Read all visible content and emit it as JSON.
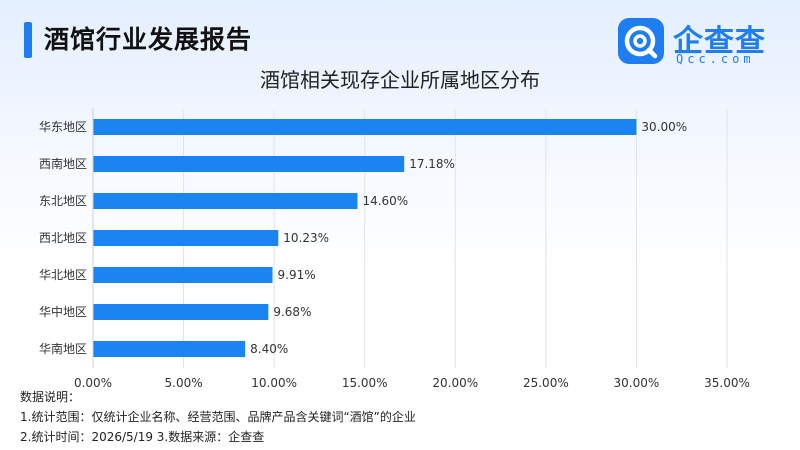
{
  "header": {
    "title": "酒馆行业发展报告"
  },
  "logo": {
    "name": "企查查",
    "domain": "Qcc.com",
    "icon": "qcc-logo-icon"
  },
  "colors": {
    "accent": "#1e7ef0",
    "bar": "#1a85f0"
  },
  "notes": {
    "heading": "数据说明：",
    "line1": "1.统计范围：仅统计企业名称、经营范围、品牌产品含关键词“酒馆”的企业",
    "line2": "2.统计时间：2026/5/19  3.数据来源：企查查"
  },
  "chart_data": {
    "type": "bar",
    "orientation": "horizontal",
    "title": "酒馆相关现存企业所属地区分布",
    "categories": [
      "华东地区",
      "西南地区",
      "东北地区",
      "西北地区",
      "华北地区",
      "华中地区",
      "华南地区"
    ],
    "values": [
      30.0,
      17.18,
      14.6,
      10.23,
      9.91,
      9.68,
      8.4
    ],
    "value_labels": [
      "30.00%",
      "17.18%",
      "14.60%",
      "10.23%",
      "9.91%",
      "9.68%",
      "8.40%"
    ],
    "x_ticks": [
      0,
      5,
      10,
      15,
      20,
      25,
      30,
      35
    ],
    "x_tick_labels": [
      "0.00%",
      "5.00%",
      "10.00%",
      "15.00%",
      "20.00%",
      "25.00%",
      "30.00%",
      "35.00%"
    ],
    "xlim": [
      0,
      35
    ],
    "grid": "vertical",
    "legend": "none"
  }
}
